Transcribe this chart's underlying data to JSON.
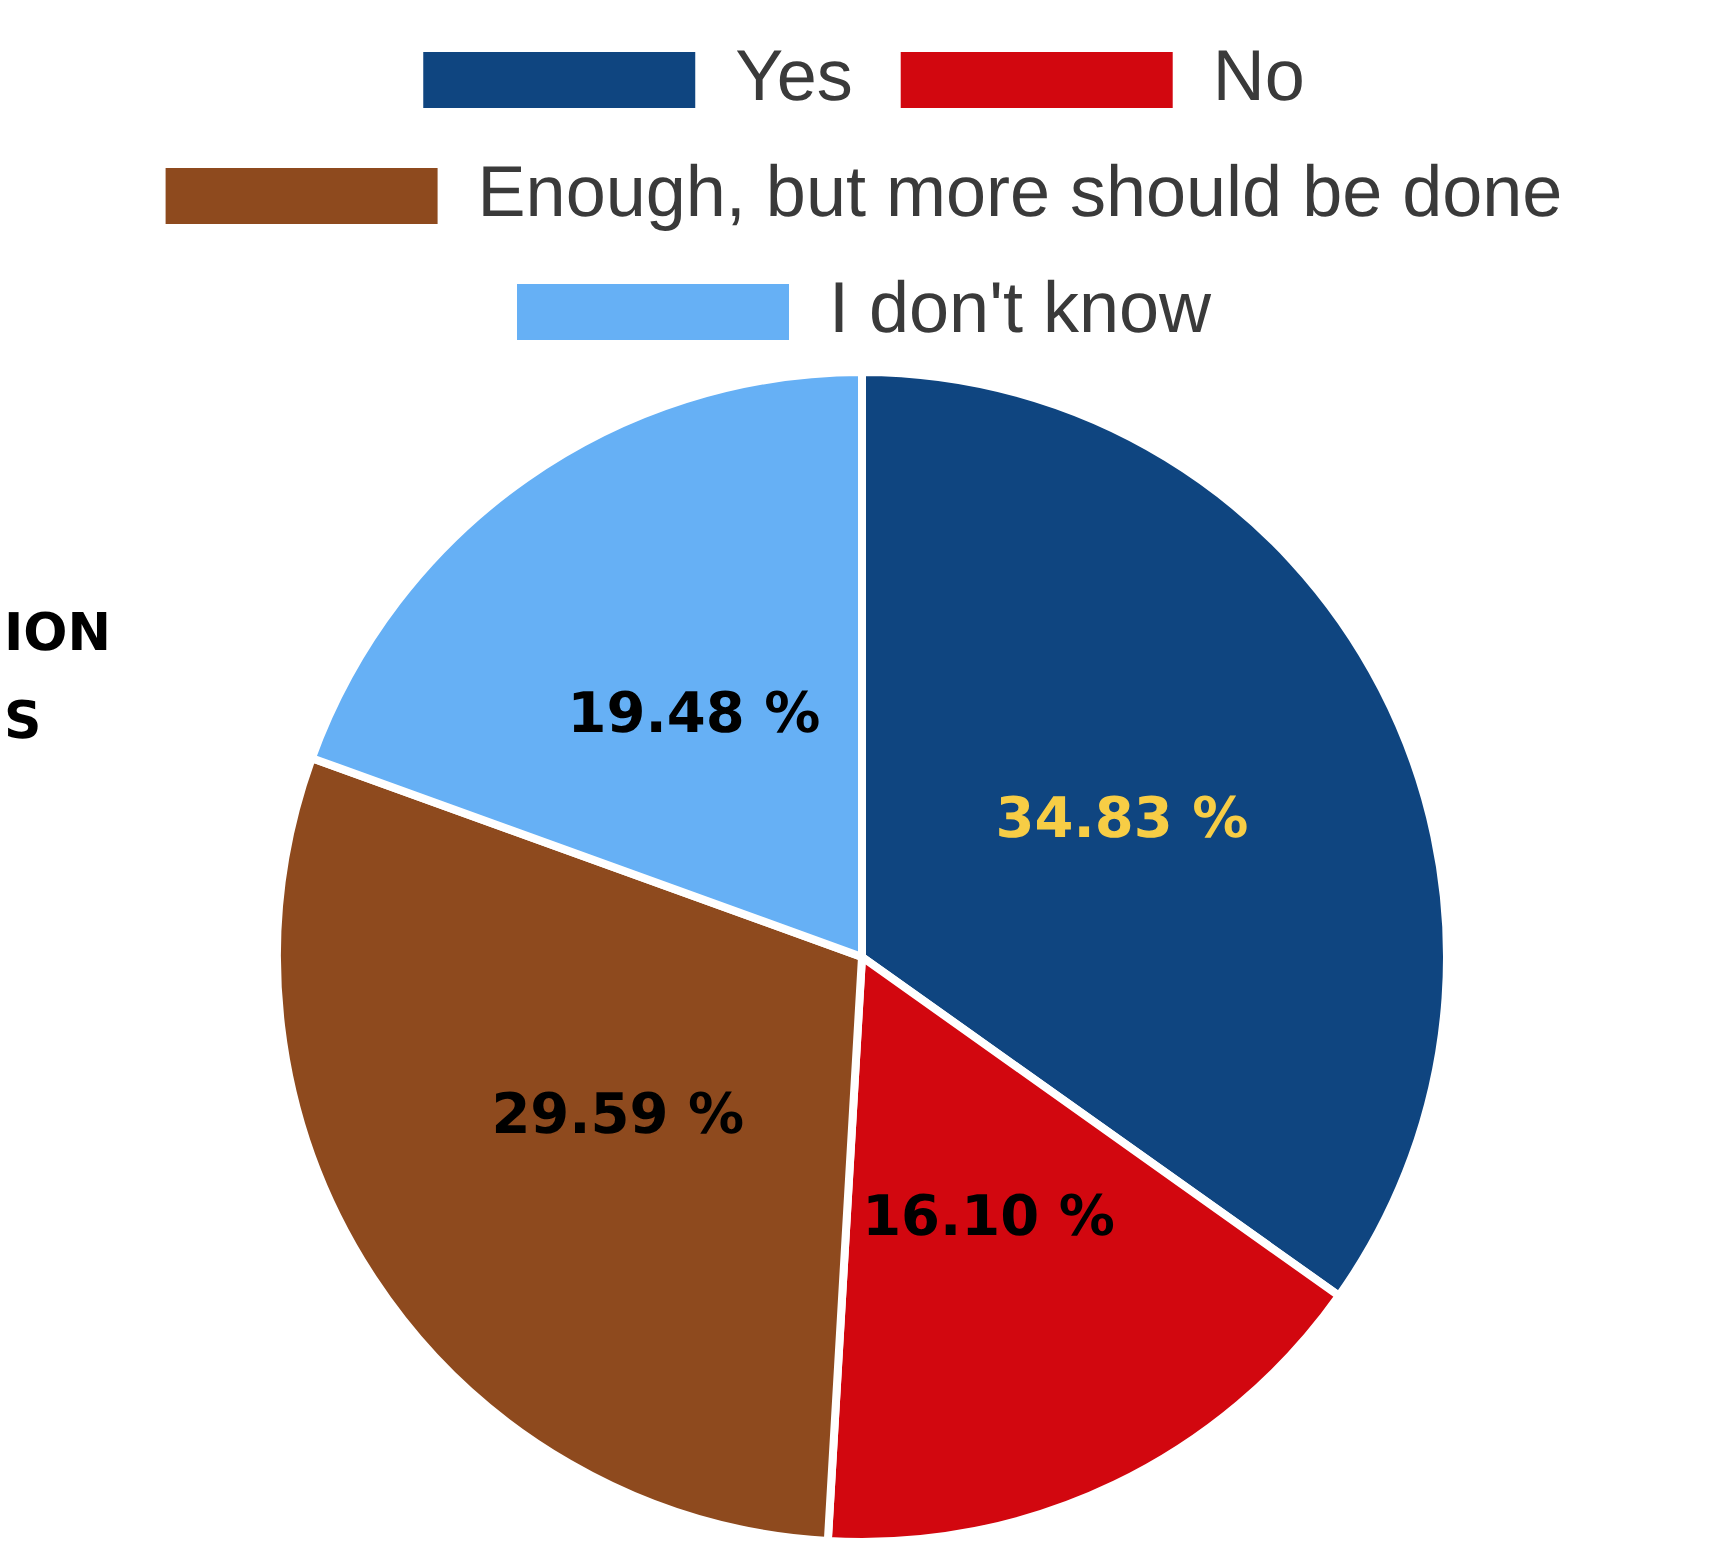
{
  "chart_data": {
    "type": "pie",
    "categories": [
      "Yes",
      "No",
      "Enough, but more should be done",
      "I don't know"
    ],
    "values": [
      34.83,
      16.1,
      29.59,
      19.48
    ],
    "colors": [
      "#0f4580",
      "#d2070f",
      "#8e4a1e",
      "#66b0f5"
    ],
    "value_labels": [
      "34.83 %",
      "16.10 %",
      "29.59 %",
      "19.48 %"
    ],
    "legend": "top",
    "annotations": [
      "ION",
      "S"
    ]
  }
}
